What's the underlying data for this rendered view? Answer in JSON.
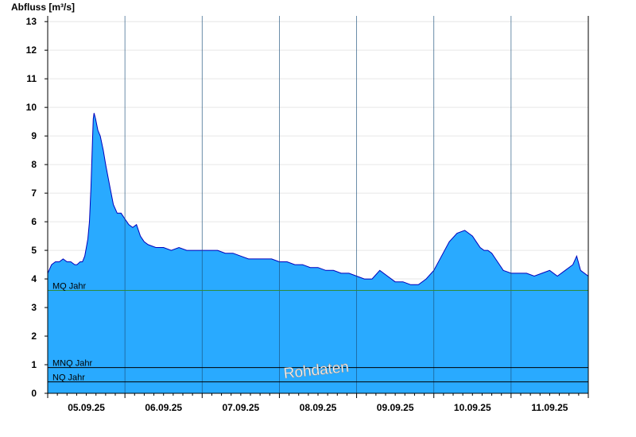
{
  "chart_data": {
    "type": "area",
    "title": "",
    "ylabel": "Abfluss [m³/s]",
    "xlabel": "",
    "ylim": [
      0,
      13.2
    ],
    "yticks": [
      0,
      1,
      2,
      3,
      4,
      5,
      6,
      7,
      8,
      9,
      10,
      11,
      12,
      13
    ],
    "x_tick_labels": [
      "05.09.25",
      "06.09.25",
      "07.09.25",
      "08.09.25",
      "09.09.25",
      "10.09.25",
      "11.09.25"
    ],
    "x_range_days": [
      4.5,
      11.5
    ],
    "grid": "horizontal",
    "fill_color": "#29aaff",
    "line_color": "#0000bb",
    "series": [
      {
        "values_x_days": [
          4.5,
          4.55,
          4.6,
          4.65,
          4.7,
          4.75,
          4.8,
          4.85,
          4.88,
          4.92,
          4.95,
          4.98,
          5.0,
          5.02,
          5.04,
          5.06,
          5.08,
          5.09,
          5.1,
          5.12,
          5.15,
          5.18,
          5.22,
          5.25,
          5.3,
          5.35,
          5.4,
          5.45,
          5.5,
          5.55,
          5.6,
          5.65,
          5.7,
          5.75,
          5.8,
          5.9,
          6.0,
          6.1,
          6.2,
          6.3,
          6.4,
          6.5,
          6.6,
          6.7,
          6.8,
          6.9,
          7.0,
          7.1,
          7.2,
          7.3,
          7.4,
          7.5,
          7.6,
          7.7,
          7.8,
          7.9,
          8.0,
          8.1,
          8.2,
          8.3,
          8.4,
          8.5,
          8.6,
          8.7,
          8.8,
          8.9,
          9.0,
          9.1,
          9.2,
          9.3,
          9.4,
          9.5,
          9.6,
          9.7,
          9.8,
          9.9,
          10.0,
          10.05,
          10.1,
          10.15,
          10.2,
          10.25,
          10.3,
          10.35,
          10.4,
          10.5,
          10.6,
          10.7,
          10.8,
          10.9,
          11.0,
          11.1,
          11.2,
          11.3,
          11.35,
          11.4,
          11.5
        ],
        "values_y": [
          4.2,
          4.5,
          4.6,
          4.6,
          4.7,
          4.6,
          4.6,
          4.5,
          4.5,
          4.6,
          4.6,
          4.8,
          5.1,
          5.4,
          6.0,
          7.2,
          8.8,
          9.6,
          9.8,
          9.6,
          9.2,
          9.0,
          8.5,
          8.0,
          7.3,
          6.6,
          6.3,
          6.3,
          6.1,
          5.9,
          5.8,
          5.9,
          5.5,
          5.3,
          5.2,
          5.1,
          5.1,
          5.0,
          5.1,
          5.0,
          5.0,
          5.0,
          5.0,
          5.0,
          4.9,
          4.9,
          4.8,
          4.7,
          4.7,
          4.7,
          4.7,
          4.6,
          4.6,
          4.5,
          4.5,
          4.4,
          4.4,
          4.3,
          4.3,
          4.2,
          4.2,
          4.1,
          4.0,
          4.0,
          4.3,
          4.1,
          3.9,
          3.9,
          3.8,
          3.8,
          4.0,
          4.3,
          4.8,
          5.3,
          5.6,
          5.7,
          5.5,
          5.3,
          5.1,
          5.0,
          5.0,
          4.9,
          4.7,
          4.5,
          4.3,
          4.2,
          4.2,
          4.2,
          4.1,
          4.2,
          4.3,
          4.1,
          4.3,
          4.5,
          4.8,
          4.3,
          4.1
        ]
      }
    ],
    "reference_lines": [
      {
        "label": "MQ Jahr",
        "value": 3.6,
        "color": "#2e8b3a"
      },
      {
        "label": "MNQ Jahr",
        "value": 0.9,
        "color": "#000000"
      },
      {
        "label": "NQ Jahr",
        "value": 0.4,
        "color": "#000000"
      }
    ],
    "watermark": "Rohdaten"
  }
}
